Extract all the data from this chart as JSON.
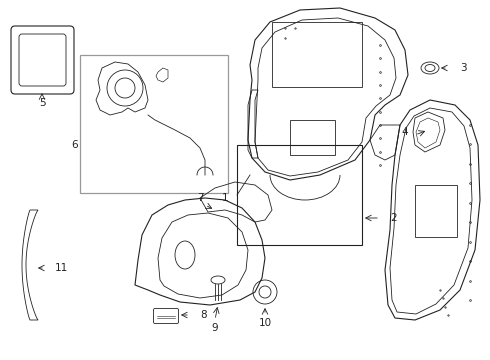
{
  "background_color": "#ffffff",
  "fig_width": 4.9,
  "fig_height": 3.6,
  "dpi": 100,
  "line_color": "#222222",
  "box_color": "#999999"
}
